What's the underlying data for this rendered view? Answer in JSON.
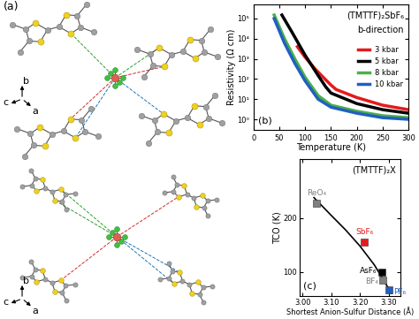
{
  "structure_panel": {
    "label": "(a)",
    "top_view_axes": [
      "b",
      "c",
      "a"
    ],
    "bottom_view_axes": [
      "b",
      "c",
      "a"
    ]
  },
  "chart_data": [
    {
      "type": "line",
      "annotations": [
        "(TMTTF)₂SbF₆",
        "b-direction",
        "(b)"
      ],
      "x_label": "Temperature (K)",
      "y_label": "Resistivity (Ω cm)",
      "log": "y",
      "grid": false,
      "legend": "center right",
      "xlim": [
        0,
        300
      ],
      "xticks": [
        0,
        50,
        100,
        150,
        200,
        250,
        300
      ],
      "ylim": [
        0.3,
        500000
      ],
      "yticks": [
        {
          "value": 1,
          "label": "10⁰"
        },
        {
          "value": 10,
          "label": "10¹"
        },
        {
          "value": 100,
          "label": "10²"
        },
        {
          "value": 1000,
          "label": "10³"
        },
        {
          "value": 10000,
          "label": "10⁴"
        },
        {
          "value": 100000,
          "label": "10⁵"
        }
      ],
      "series": [
        {
          "name": "3 kbar",
          "color": "#e41a1c",
          "x": [
            85,
            100,
            120,
            140,
            150,
            160,
            200,
            250,
            300
          ],
          "values": [
            4000,
            1200,
            300,
            90,
            50,
            30,
            12,
            5,
            3
          ]
        },
        {
          "name": "5 kbar",
          "color": "#000000",
          "x": [
            55,
            75,
            100,
            125,
            140,
            150,
            200,
            250,
            300
          ],
          "values": [
            150000,
            20000,
            1500,
            150,
            40,
            20,
            6,
            3,
            2
          ]
        },
        {
          "name": "8 kbar",
          "color": "#4daf4a",
          "x": [
            40,
            60,
            80,
            100,
            125,
            150,
            200,
            250,
            300
          ],
          "values": [
            150000,
            10000,
            1000,
            120,
            15,
            5,
            2.5,
            1.5,
            1.2
          ]
        },
        {
          "name": "10 kbar",
          "color": "#2060c0",
          "x": [
            40,
            60,
            80,
            100,
            125,
            150,
            200,
            250,
            300
          ],
          "values": [
            100000,
            6000,
            600,
            80,
            10,
            4,
            2,
            1.2,
            1.0
          ]
        }
      ]
    },
    {
      "type": "scatter",
      "annotations": [
        "(TMTTF)₂X",
        "(c)"
      ],
      "x_label": "Shortest Anion-Sulfur Distance (Å)",
      "y_label": "TCO (K)",
      "grid": false,
      "xlim": [
        2.99,
        3.34
      ],
      "xticks": [
        {
          "value": 3.0,
          "label": "3.00"
        },
        {
          "value": 3.1,
          "label": "3.10"
        },
        {
          "value": 3.2,
          "label": "3.20"
        },
        {
          "value": 3.3,
          "label": "3.30"
        }
      ],
      "ylim": [
        55,
        310
      ],
      "yticks": [
        100,
        200
      ],
      "series": [
        {
          "name": "ReO₄",
          "color": "#808080",
          "marker": "s",
          "x": [
            3.05
          ],
          "values": [
            228
          ]
        },
        {
          "name": "SbF₆",
          "color": "#e41a1c",
          "marker": "s",
          "x": [
            3.215
          ],
          "values": [
            155
          ]
        },
        {
          "name": "AsF₆",
          "color": "#000000",
          "marker": "s",
          "x": [
            3.275
          ],
          "values": [
            100
          ]
        },
        {
          "name": "BF₄",
          "color": "#808080",
          "marker": "s",
          "x": [
            3.28
          ],
          "values": [
            84
          ]
        },
        {
          "name": "PF₆",
          "color": "#2060c0",
          "marker": "s",
          "x": [
            3.3
          ],
          "values": [
            67
          ]
        },
        {
          "type": "line",
          "color": "#000000",
          "line_style": "solid",
          "x": [
            3.04,
            3.1,
            3.15,
            3.2,
            3.25,
            3.31
          ],
          "values": [
            238,
            205,
            178,
            148,
            113,
            60
          ]
        }
      ]
    }
  ]
}
